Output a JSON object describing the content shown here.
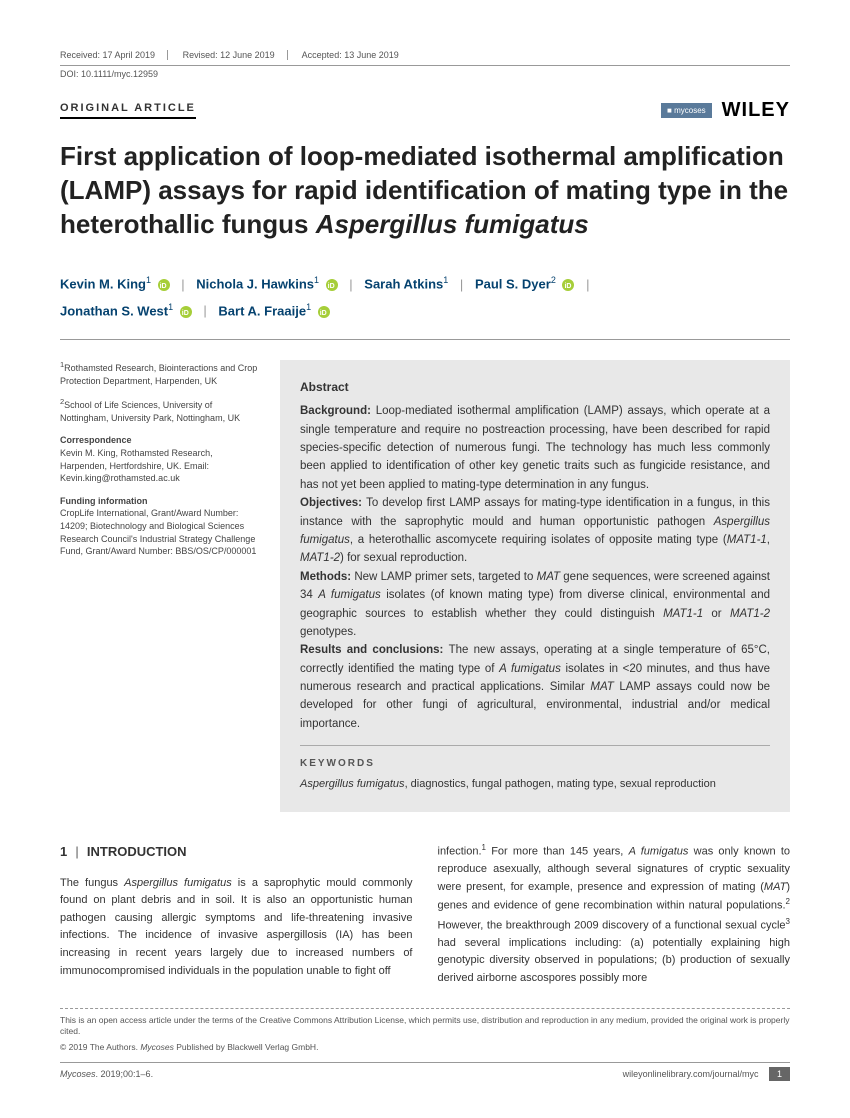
{
  "header": {
    "received": "Received: 17 April 2019",
    "revised": "Revised: 12 June 2019",
    "accepted": "Accepted: 13 June 2019",
    "doi": "DOI: 10.1111/myc.12959",
    "article_type": "ORIGINAL ARTICLE",
    "journal_badge": "mycoses",
    "publisher": "WILEY"
  },
  "title": {
    "part1": "First application of loop-mediated isothermal amplification (LAMP) assays for rapid identification of mating type in the heterothallic fungus ",
    "italic": "Aspergillus fumigatus"
  },
  "authors": [
    {
      "name": "Kevin M. King",
      "sup": "1",
      "orcid": true
    },
    {
      "name": "Nichola J. Hawkins",
      "sup": "1",
      "orcid": true
    },
    {
      "name": "Sarah Atkins",
      "sup": "1",
      "orcid": false
    },
    {
      "name": "Paul S. Dyer",
      "sup": "2",
      "orcid": true
    },
    {
      "name": "Jonathan S. West",
      "sup": "1",
      "orcid": true
    },
    {
      "name": "Bart A. Fraaije",
      "sup": "1",
      "orcid": true
    }
  ],
  "affiliations": {
    "a1_sup": "1",
    "a1": "Rothamsted Research, Biointeractions and Crop Protection Department, Harpenden, UK",
    "a2_sup": "2",
    "a2": "School of Life Sciences, University of Nottingham, University Park, Nottingham, UK",
    "corr_head": "Correspondence",
    "corr": "Kevin M. King, Rothamsted Research, Harpenden, Hertfordshire, UK. Email: Kevin.king@rothamsted.ac.uk",
    "fund_head": "Funding information",
    "fund": "CropLife International, Grant/Award Number: 14209; Biotechnology and Biological Sciences Research Council's Industrial Strategy Challenge Fund, Grant/Award Number: BBS/OS/CP/000001"
  },
  "abstract": {
    "title": "Abstract",
    "bg_label": "Background: ",
    "bg": "Loop-mediated isothermal amplification (LAMP) assays, which operate at a single temperature and require no postreaction processing, have been described for rapid species-specific detection of numerous fungi. The technology has much less commonly been applied to identification of other key genetic traits such as fungicide resistance, and has not yet been applied to mating-type determination in any fungus.",
    "obj_label": "Objectives: ",
    "obj_p1": "To develop first LAMP assays for mating-type identification in a fungus, in this instance with the saprophytic mould and human opportunistic pathogen ",
    "obj_i1": "Aspergillus fumigatus",
    "obj_p2": ", a heterothallic ascomycete requiring isolates of opposite mating type (",
    "obj_i2": "MAT1-1",
    "obj_p3": ", ",
    "obj_i3": "MAT1-2",
    "obj_p4": ") for sexual reproduction.",
    "meth_label": "Methods: ",
    "meth_p1": "New LAMP primer sets, targeted to ",
    "meth_i1": "MAT",
    "meth_p2": " gene sequences, were screened against 34 ",
    "meth_i2": "A fumigatus",
    "meth_p3": " isolates (of known mating type) from diverse clinical, environmental and geographic sources to establish whether they could distinguish ",
    "meth_i3": "MAT1-1",
    "meth_p4": " or ",
    "meth_i4": "MAT1-2",
    "meth_p5": " genotypes.",
    "res_label": "Results and conclusions: ",
    "res_p1": "The new assays, operating at a single temperature of 65°C, correctly identified the mating type of ",
    "res_i1": "A fumigatus",
    "res_p2": " isolates in <20 minutes, and thus have numerous research and practical applications. Similar ",
    "res_i2": "MAT",
    "res_p3": " LAMP assays could now be developed for other fungi of agricultural, environmental, industrial and/or medical importance.",
    "kw_head": "KEYWORDS",
    "kw_i": "Aspergillus fumigatus",
    "kw_rest": ", diagnostics, fungal pathogen, mating type, sexual reproduction"
  },
  "intro": {
    "num": "1",
    "bar": "|",
    "head": "INTRODUCTION",
    "col1_p1": "The fungus ",
    "col1_i1": "Aspergillus fumigatus",
    "col1_p2": " is a saprophytic mould commonly found on plant debris and in soil. It is also an opportunistic human pathogen causing allergic symptoms and life-threatening invasive infections. The incidence of invasive aspergillosis (IA) has been increasing in recent years largely due to increased numbers of immunocompromised individuals in the population unable to fight off",
    "col2_p1": "infection.",
    "col2_s1": "1",
    "col2_p2": " For more than 145 years, ",
    "col2_i1": "A fumigatus",
    "col2_p3": " was only known to reproduce asexually, although several signatures of cryptic sexuality were present, for example, presence and expression of mating (",
    "col2_i2": "MAT",
    "col2_p4": ") genes and evidence of gene recombination within natural populations.",
    "col2_s2": "2",
    "col2_p5": " However, the breakthrough 2009 discovery of a functional sexual cycle",
    "col2_s3": "3",
    "col2_p6": " had several implications including: (a) potentially explaining high genotypic diversity observed in populations; (b) production of sexually derived airborne ascospores possibly more"
  },
  "footer": {
    "license": "This is an open access article under the terms of the Creative Commons Attribution License, which permits use, distribution and reproduction in any medium, provided the original work is properly cited.",
    "copyright_p1": "© 2019 The Authors. ",
    "copyright_i": "Mycoses",
    "copyright_p2": " Published by Blackwell Verlag GmbH.",
    "citation_i": "Mycoses",
    "citation_rest": ". 2019;00:1–6.",
    "url": "wileyonlinelibrary.com/journal/myc",
    "page": "1"
  }
}
